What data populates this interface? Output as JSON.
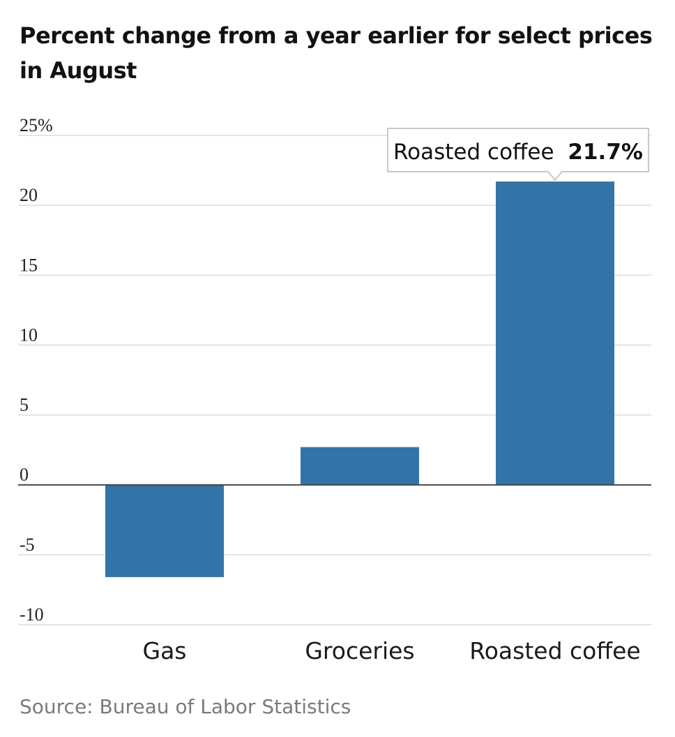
{
  "chart_data": {
    "type": "bar",
    "title": "Percent change from a year earlier for select prices in August",
    "categories": [
      "Gas",
      "Groceries",
      "Roasted coffee"
    ],
    "values": [
      -6.6,
      2.7,
      21.7
    ],
    "ylim": [
      -10,
      25
    ],
    "yticks": [
      25,
      20,
      15,
      10,
      5,
      0,
      -5,
      -10
    ],
    "ytick_labels": [
      "25%",
      "20",
      "15",
      "10",
      "5",
      "0",
      "-5",
      "-10"
    ],
    "xlabel": "",
    "ylabel": "",
    "grid": true,
    "bar_color": "#3274a8",
    "gridline_color": "#e3e3e3",
    "zero_line_color": "#444444",
    "tooltip": {
      "category_index": 2,
      "label": "Roasted coffee",
      "value_text": "21.7%"
    },
    "source": "Source: Bureau of Labor Statistics"
  }
}
